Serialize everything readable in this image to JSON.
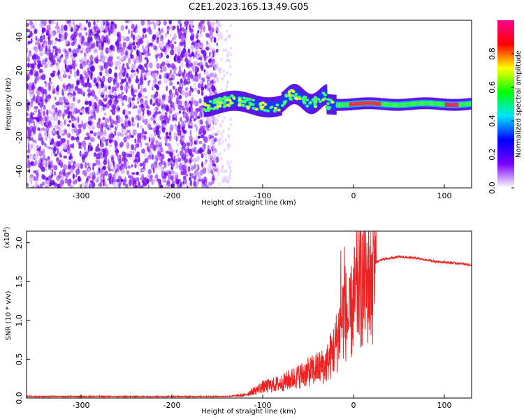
{
  "figure": {
    "title": "C2E1.2023.165.13.49.G05"
  },
  "chart_data": [
    {
      "type": "heatmap",
      "name": "spectrogram",
      "xlabel": "Height of straight line (km)",
      "ylabel": "Frequency (Hz)",
      "xlim": [
        -360,
        130
      ],
      "ylim": [
        -50,
        50
      ],
      "xticks": [
        -300,
        -200,
        -100,
        0,
        100
      ],
      "yticks": [
        -40,
        -20,
        0,
        20,
        40
      ],
      "description_of_signal": "noise-dominated scattered purple blobs from -360 to about -165 km; coherent signal band centred near 0 Hz from about -165 km to 130 km, brightest (red) near 0 Hz to the right of 0 km",
      "colorbar": {
        "label": "Normalized spectral amplitude",
        "range": [
          0.0,
          1.0
        ],
        "ticks": [
          0.0,
          0.2,
          0.4,
          0.6,
          0.8
        ],
        "tick_labels": [
          "0.0",
          "0.2",
          "0.4",
          "0.6",
          "0.8"
        ],
        "colors": [
          "#ffffff",
          "#7b00ff",
          "#0000ff",
          "#00e5ff",
          "#00ff00",
          "#ffff00",
          "#ff0000",
          "#ff0090"
        ]
      }
    },
    {
      "type": "line",
      "name": "snr",
      "xlabel": "Height of straight line (km)",
      "ylabel": "SNR (10 * v/v)",
      "yscale_label": "(x10",
      "yscale_exp": "4",
      "yscale_close": ")",
      "xlim": [
        -360,
        130
      ],
      "ylim": [
        0.0,
        2.15
      ],
      "xticks": [
        -300,
        -200,
        -100,
        0,
        100
      ],
      "yticks": [
        0.0,
        0.5,
        1.0,
        1.5,
        2.0
      ],
      "ytick_labels": [
        "0.0",
        "0.5",
        "1.0",
        "1.5",
        "2.0"
      ],
      "color": "#ee2222",
      "x": [
        -360,
        -300,
        -200,
        -140,
        -120,
        -100,
        -80,
        -60,
        -40,
        -30,
        -20,
        -10,
        -5,
        0,
        5,
        10,
        15,
        20,
        25,
        30,
        40,
        50,
        60,
        70,
        80,
        90,
        100,
        110,
        120,
        130
      ],
      "values": [
        0.02,
        0.02,
        0.02,
        0.02,
        0.04,
        0.15,
        0.2,
        0.3,
        0.4,
        0.45,
        0.7,
        1.2,
        1.0,
        1.3,
        1.5,
        1.55,
        1.6,
        1.6,
        1.75,
        1.78,
        1.8,
        1.82,
        1.81,
        1.8,
        1.78,
        1.76,
        1.75,
        1.74,
        1.73,
        1.71
      ],
      "spikes": [
        {
          "x": -14,
          "value": 1.9
        },
        {
          "x": -10,
          "value": 1.95
        },
        {
          "x": 7,
          "value": 2.15
        },
        {
          "x": 22,
          "value": 1.98
        }
      ]
    }
  ]
}
